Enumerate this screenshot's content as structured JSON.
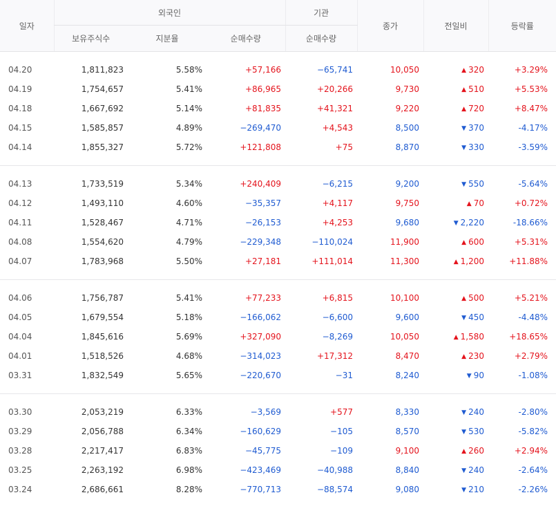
{
  "headers": {
    "date": "일자",
    "foreign": "외국인",
    "institution": "기관",
    "close": "종가",
    "change": "전일비",
    "rate": "등락률",
    "holdings": "보유주식수",
    "ratio": "지분율",
    "foreign_net": "순매수량",
    "inst_net": "순매수량"
  },
  "colors": {
    "up": "#e4131c",
    "down": "#1f5bd1"
  },
  "icons": {
    "up": "triangle-up-icon",
    "down": "triangle-down-icon"
  },
  "groups": [
    [
      {
        "date": "04.20",
        "holdings": "1,811,823",
        "ratio": "5.58%",
        "foreign_net": "+57,166",
        "inst_net": "−65,741",
        "close": "10,050",
        "change": "320",
        "change_dir": "up",
        "rate": "+3.29%"
      },
      {
        "date": "04.19",
        "holdings": "1,754,657",
        "ratio": "5.41%",
        "foreign_net": "+86,965",
        "inst_net": "+20,266",
        "close": "9,730",
        "change": "510",
        "change_dir": "up",
        "rate": "+5.53%"
      },
      {
        "date": "04.18",
        "holdings": "1,667,692",
        "ratio": "5.14%",
        "foreign_net": "+81,835",
        "inst_net": "+41,321",
        "close": "9,220",
        "change": "720",
        "change_dir": "up",
        "rate": "+8.47%"
      },
      {
        "date": "04.15",
        "holdings": "1,585,857",
        "ratio": "4.89%",
        "foreign_net": "−269,470",
        "inst_net": "+4,543",
        "close": "8,500",
        "change": "370",
        "change_dir": "down",
        "rate": "-4.17%"
      },
      {
        "date": "04.14",
        "holdings": "1,855,327",
        "ratio": "5.72%",
        "foreign_net": "+121,808",
        "inst_net": "+75",
        "close": "8,870",
        "change": "330",
        "change_dir": "down",
        "rate": "-3.59%"
      }
    ],
    [
      {
        "date": "04.13",
        "holdings": "1,733,519",
        "ratio": "5.34%",
        "foreign_net": "+240,409",
        "inst_net": "−6,215",
        "close": "9,200",
        "change": "550",
        "change_dir": "down",
        "rate": "-5.64%"
      },
      {
        "date": "04.12",
        "holdings": "1,493,110",
        "ratio": "4.60%",
        "foreign_net": "−35,357",
        "inst_net": "+4,117",
        "close": "9,750",
        "change": "70",
        "change_dir": "up",
        "rate": "+0.72%"
      },
      {
        "date": "04.11",
        "holdings": "1,528,467",
        "ratio": "4.71%",
        "foreign_net": "−26,153",
        "inst_net": "+4,253",
        "close": "9,680",
        "change": "2,220",
        "change_dir": "down",
        "rate": "-18.66%"
      },
      {
        "date": "04.08",
        "holdings": "1,554,620",
        "ratio": "4.79%",
        "foreign_net": "−229,348",
        "inst_net": "−110,024",
        "close": "11,900",
        "change": "600",
        "change_dir": "up",
        "rate": "+5.31%"
      },
      {
        "date": "04.07",
        "holdings": "1,783,968",
        "ratio": "5.50%",
        "foreign_net": "+27,181",
        "inst_net": "+111,014",
        "close": "11,300",
        "change": "1,200",
        "change_dir": "up",
        "rate": "+11.88%"
      }
    ],
    [
      {
        "date": "04.06",
        "holdings": "1,756,787",
        "ratio": "5.41%",
        "foreign_net": "+77,233",
        "inst_net": "+6,815",
        "close": "10,100",
        "change": "500",
        "change_dir": "up",
        "rate": "+5.21%"
      },
      {
        "date": "04.05",
        "holdings": "1,679,554",
        "ratio": "5.18%",
        "foreign_net": "−166,062",
        "inst_net": "−6,600",
        "close": "9,600",
        "change": "450",
        "change_dir": "down",
        "rate": "-4.48%"
      },
      {
        "date": "04.04",
        "holdings": "1,845,616",
        "ratio": "5.69%",
        "foreign_net": "+327,090",
        "inst_net": "−8,269",
        "close": "10,050",
        "change": "1,580",
        "change_dir": "up",
        "rate": "+18.65%"
      },
      {
        "date": "04.01",
        "holdings": "1,518,526",
        "ratio": "4.68%",
        "foreign_net": "−314,023",
        "inst_net": "+17,312",
        "close": "8,470",
        "change": "230",
        "change_dir": "up",
        "rate": "+2.79%"
      },
      {
        "date": "03.31",
        "holdings": "1,832,549",
        "ratio": "5.65%",
        "foreign_net": "−220,670",
        "inst_net": "−31",
        "close": "8,240",
        "change": "90",
        "change_dir": "down",
        "rate": "-1.08%"
      }
    ],
    [
      {
        "date": "03.30",
        "holdings": "2,053,219",
        "ratio": "6.33%",
        "foreign_net": "−3,569",
        "inst_net": "+577",
        "close": "8,330",
        "change": "240",
        "change_dir": "down",
        "rate": "-2.80%"
      },
      {
        "date": "03.29",
        "holdings": "2,056,788",
        "ratio": "6.34%",
        "foreign_net": "−160,629",
        "inst_net": "−105",
        "close": "8,570",
        "change": "530",
        "change_dir": "down",
        "rate": "-5.82%"
      },
      {
        "date": "03.28",
        "holdings": "2,217,417",
        "ratio": "6.83%",
        "foreign_net": "−45,775",
        "inst_net": "−109",
        "close": "9,100",
        "change": "260",
        "change_dir": "up",
        "rate": "+2.94%"
      },
      {
        "date": "03.25",
        "holdings": "2,263,192",
        "ratio": "6.98%",
        "foreign_net": "−423,469",
        "inst_net": "−40,988",
        "close": "8,840",
        "change": "240",
        "change_dir": "down",
        "rate": "-2.64%"
      },
      {
        "date": "03.24",
        "holdings": "2,686,661",
        "ratio": "8.28%",
        "foreign_net": "−770,713",
        "inst_net": "−88,574",
        "close": "9,080",
        "change": "210",
        "change_dir": "down",
        "rate": "-2.26%"
      }
    ]
  ]
}
